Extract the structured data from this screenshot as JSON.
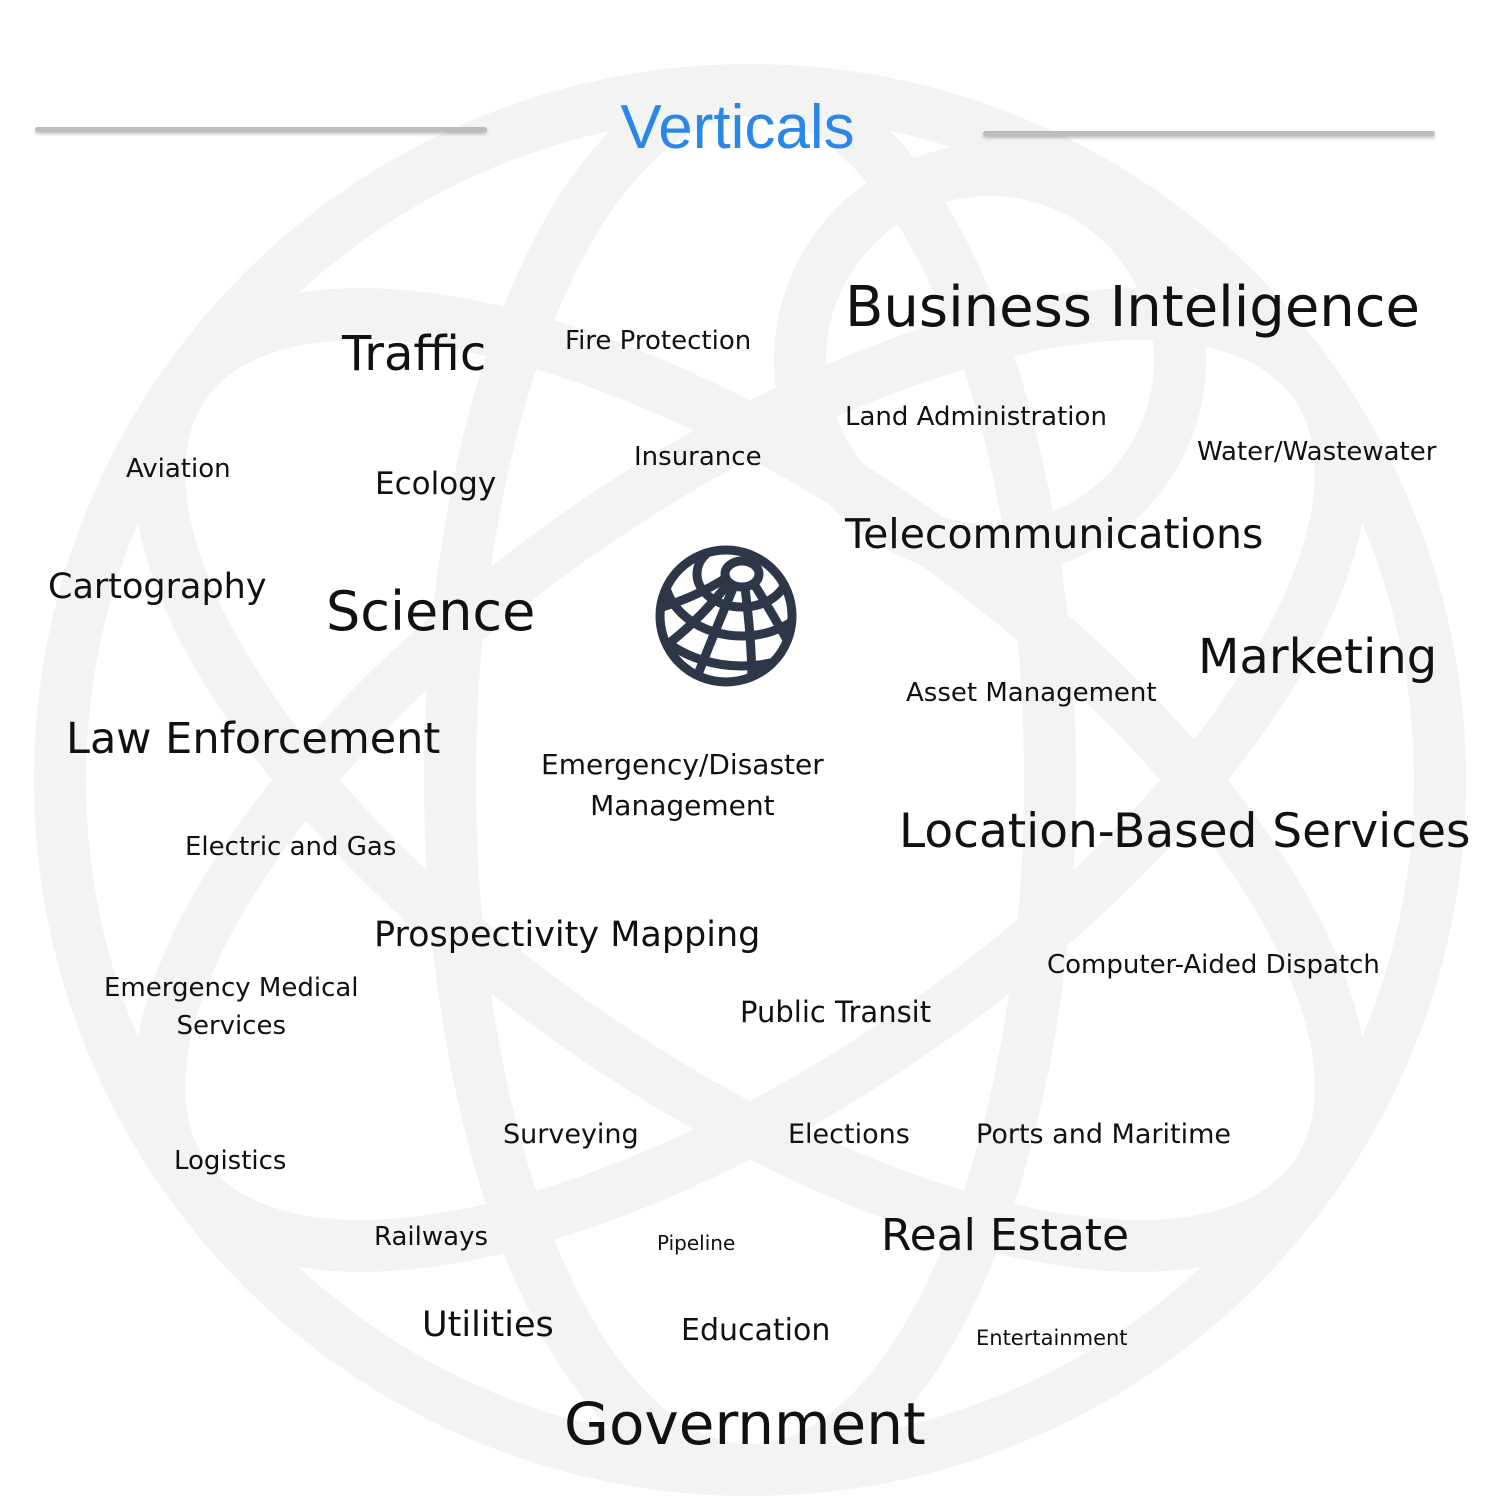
{
  "title": "Verticals",
  "colors": {
    "title": "#2a87e8",
    "text": "#111111",
    "icon": "#2d3748",
    "watermark": "#f4f4f4"
  },
  "center_icon": "globe-icon",
  "verticals": [
    "Business Inteligence",
    "Traffic",
    "Fire Protection",
    "Land Administration",
    "Water/Wastewater",
    "Aviation",
    "Ecology",
    "Insurance",
    "Telecommunications",
    "Cartography",
    "Science",
    "Marketing",
    "Asset Management",
    "Law Enforcement",
    "Emergency/Disaster",
    "Management",
    "Electric and Gas",
    "Location-Based Services",
    "Prospectivity Mapping",
    "Computer-Aided Dispatch",
    "Emergency Medical",
    "Services",
    "Public Transit",
    "Surveying",
    "Elections",
    "Ports and Maritime",
    "Logistics",
    "Railways",
    "Pipeline",
    "Real Estate",
    "Utilities",
    "Education",
    "Entertainment",
    "Government"
  ]
}
